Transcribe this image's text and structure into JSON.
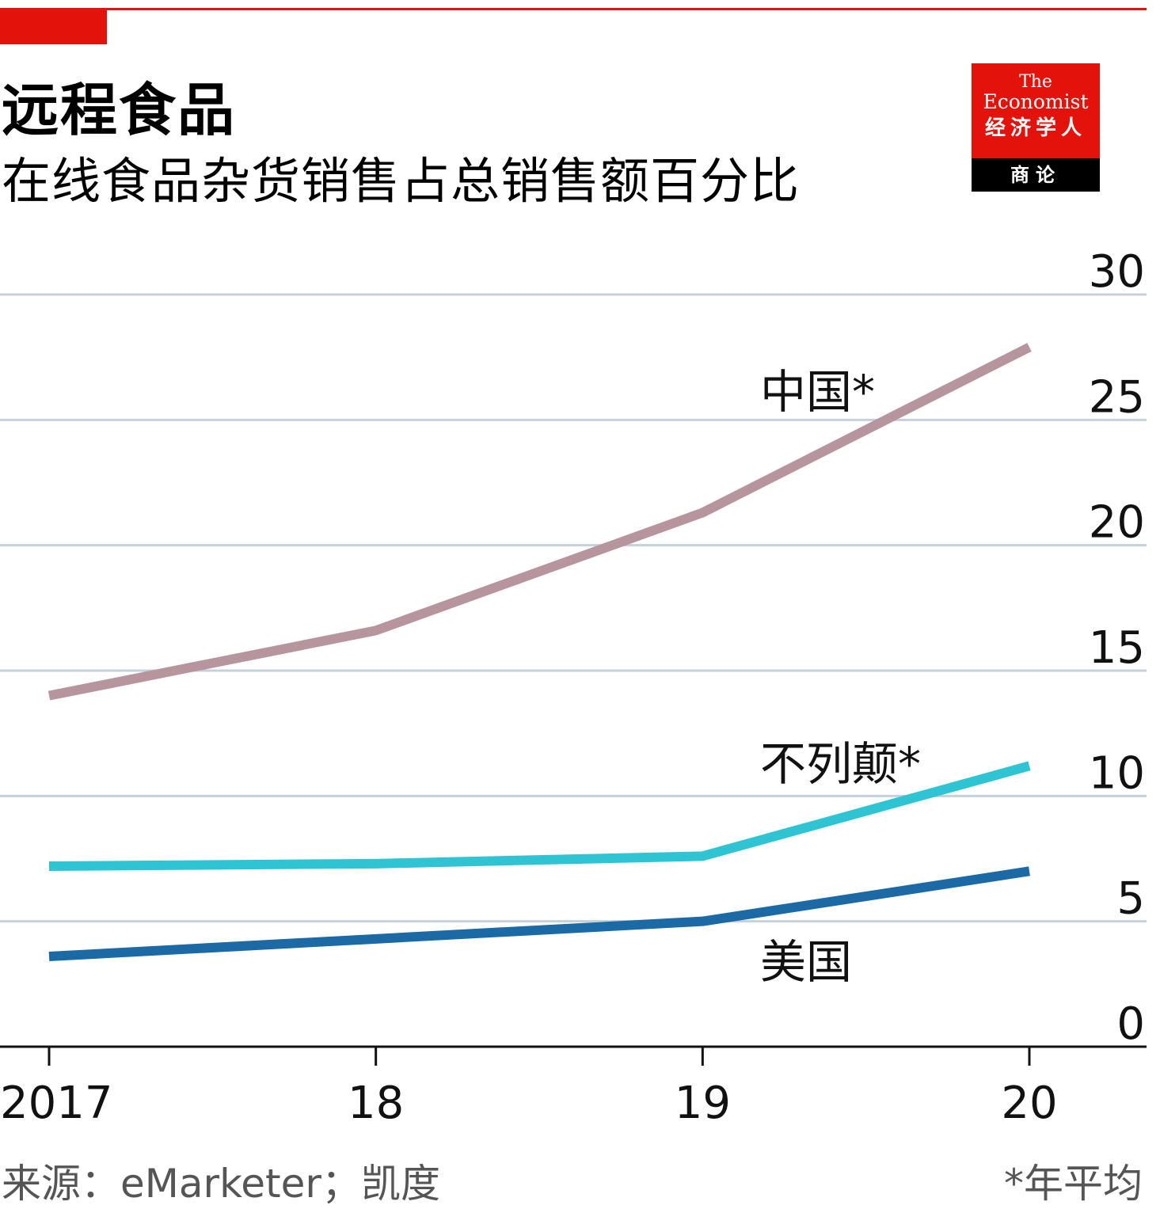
{
  "header": {
    "title": "远程食品",
    "subtitle": "在线食品杂货销售占总销售额百分比"
  },
  "logo": {
    "line1": "The",
    "line2": "Economist",
    "line3": "经济学人",
    "line4": "商论"
  },
  "chart_data": {
    "type": "line",
    "title": "远程食品",
    "subtitle": "在线食品杂货销售占总销售额百分比",
    "x": [
      2017,
      2018,
      2019,
      2020
    ],
    "x_tick_labels": [
      "2017",
      "18",
      "19",
      "20"
    ],
    "ylim": [
      0,
      30
    ],
    "y_ticks": [
      0,
      5,
      10,
      15,
      20,
      25,
      30
    ],
    "y_axis_position": "right",
    "grid": true,
    "series": [
      {
        "name": "中国*",
        "color": "#b6959f",
        "values": [
          14.0,
          16.6,
          21.3,
          27.9
        ]
      },
      {
        "name": "不列颠*",
        "color": "#2ec4d4",
        "values": [
          7.2,
          7.3,
          7.6,
          11.2
        ]
      },
      {
        "name": "美国",
        "color": "#1b6aa5",
        "values": [
          3.6,
          4.3,
          5.0,
          7.0
        ]
      }
    ],
    "source": "来源：eMarketer；凯度",
    "footnote": "*年平均"
  },
  "colors": {
    "accent": "#e3120b",
    "grid": "#c5d1d8"
  }
}
